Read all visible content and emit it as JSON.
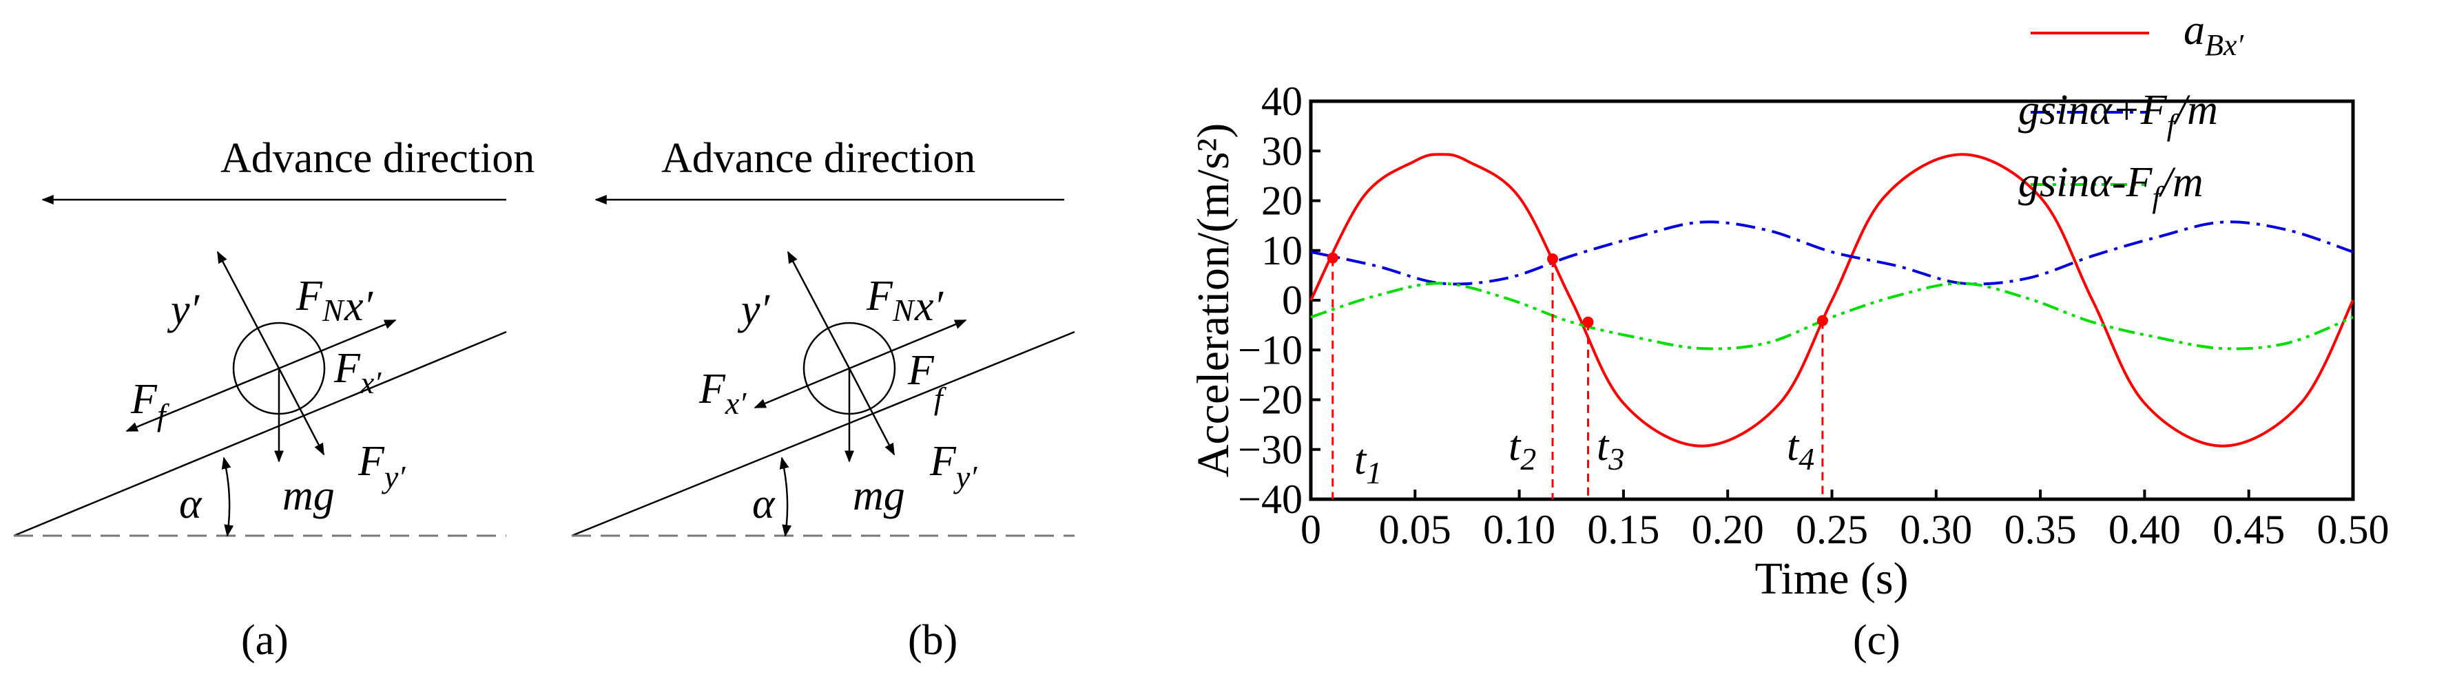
{
  "panel_a": {
    "advance_label": "Advance direction",
    "labels": {
      "y_prime": "y′",
      "F_N": "F",
      "F_N_sub": "N",
      "x_prime": "x′",
      "F_f": "F",
      "F_f_sub": "f",
      "F_xp": "F",
      "F_xp_sub": "x′",
      "mg": "mg",
      "F_yp": "F",
      "F_yp_sub": "y′",
      "alpha": "α"
    },
    "caption": "(a)"
  },
  "panel_b": {
    "advance_label": "Advance direction",
    "labels": {
      "y_prime": "y′",
      "F_N": "F",
      "F_N_sub": "N",
      "x_prime": "x′",
      "F_xp": "F",
      "F_xp_sub": "x′",
      "F_f": "F",
      "F_f_sub": "f",
      "mg": "mg",
      "F_yp": "F",
      "F_yp_sub": "y′",
      "alpha": "α"
    },
    "caption": "(b)"
  },
  "panel_c": {
    "caption": "(c)",
    "event_labels": [
      {
        "main": "t",
        "sub": "1"
      },
      {
        "main": "t",
        "sub": "2"
      },
      {
        "main": "t",
        "sub": "3"
      },
      {
        "main": "t",
        "sub": "4"
      }
    ]
  },
  "chart_data": {
    "type": "line",
    "title": "",
    "xlabel": "Time (s)",
    "ylabel": "Acceleration/(m/s²)",
    "xlim": [
      0,
      0.5
    ],
    "ylim": [
      -40,
      40
    ],
    "xticks": [
      "0",
      "0.05",
      "0.10",
      "0.15",
      "0.20",
      "0.25",
      "0.30",
      "0.35",
      "0.40",
      "0.45",
      "0.50"
    ],
    "yticks": [
      "40",
      "30",
      "20",
      "10",
      "0",
      "−10",
      "−20",
      "−30",
      "−40"
    ],
    "grid": false,
    "legend_position": "top-right",
    "series": [
      {
        "name": "a_Bx′",
        "legend_main": "a",
        "legend_sub": "Bx′",
        "color": "#ff0000",
        "style": "solid",
        "x": [
          0,
          0.025,
          0.05,
          0.0625,
          0.075,
          0.1,
          0.125,
          0.15,
          0.1875,
          0.225,
          0.25,
          0.275,
          0.3125,
          0.35,
          0.375,
          0.4,
          0.4375,
          0.475,
          0.5
        ],
        "y": [
          0,
          20.7,
          28.0,
          29.3,
          28.0,
          20.7,
          0,
          -20.7,
          -29.3,
          -20.7,
          0,
          20.7,
          29.3,
          20.7,
          0,
          -20.7,
          -29.3,
          -20.7,
          0
        ]
      },
      {
        "name": "gsinα+F_f/m",
        "legend_text": "gsinα+F",
        "legend_sub": "f",
        "legend_tail": "/m",
        "color": "#0000dd",
        "style": "dashdot",
        "x": [
          0,
          0.03125,
          0.0625,
          0.09375,
          0.125,
          0.15625,
          0.1875,
          0.21875,
          0.25,
          0.28125,
          0.3125,
          0.34375,
          0.375,
          0.40625,
          0.4375,
          0.46875,
          0.5
        ],
        "y": [
          9.7,
          6.9,
          3.4,
          4.4,
          8.9,
          12.7,
          15.7,
          14.1,
          9.7,
          6.9,
          3.4,
          4.4,
          8.9,
          12.7,
          15.7,
          14.1,
          9.7
        ]
      },
      {
        "name": "gsinα-F_f/m",
        "legend_text": "gsinα-F",
        "legend_sub": "f",
        "legend_tail": "/m",
        "color": "#00dd00",
        "style": "dashdotdot",
        "x": [
          0,
          0.03125,
          0.0625,
          0.09375,
          0.125,
          0.15625,
          0.1875,
          0.21875,
          0.25,
          0.28125,
          0.3125,
          0.34375,
          0.375,
          0.40625,
          0.4375,
          0.46875,
          0.5
        ],
        "y": [
          -3.4,
          0.9,
          3.4,
          0.4,
          -4.4,
          -7.5,
          -9.7,
          -8.6,
          -3.4,
          0.9,
          3.4,
          0.4,
          -4.4,
          -7.5,
          -9.7,
          -8.6,
          -3.4
        ]
      }
    ],
    "markers": [
      {
        "label": "t1",
        "x": 0.0105,
        "y": 8.5
      },
      {
        "label": "t2",
        "x": 0.116,
        "y": 8.3
      },
      {
        "label": "t3",
        "x": 0.133,
        "y": -4.4
      },
      {
        "label": "t4",
        "x": 0.2455,
        "y": -4.1
      }
    ]
  }
}
